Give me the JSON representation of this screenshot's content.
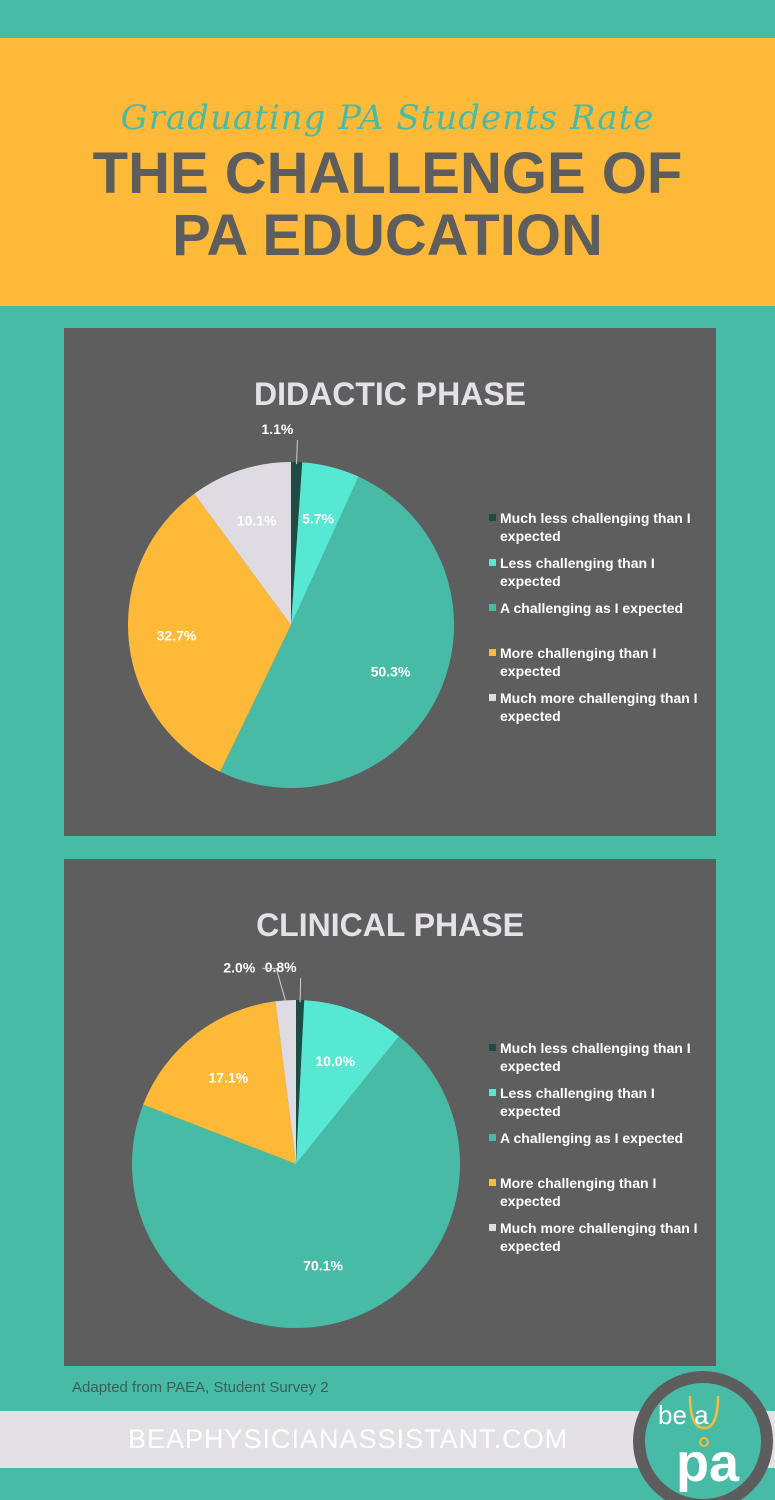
{
  "header": {
    "subtitle": "Graduating PA Students Rate",
    "title_line1": "THE CHALLENGE OF",
    "title_line2": "PA EDUCATION"
  },
  "colors": {
    "much_less": "#1f4b45",
    "less": "#56e8d2",
    "as_expected": "#48bba7",
    "more": "#fdb937",
    "much_more": "#dedbe2"
  },
  "legend": [
    "Much less challenging than I expected",
    "Less challenging than I expected",
    "A challenging as I expected",
    "More challenging than I expected",
    "Much more challenging than I expected"
  ],
  "chart_data": [
    {
      "type": "pie",
      "title": "DIDACTIC PHASE",
      "categories": [
        "Much less challenging than I expected",
        "Less challenging than I expected",
        "A challenging as I expected",
        "More challenging than I expected",
        "Much more challenging than I expected"
      ],
      "values": [
        1.1,
        5.7,
        50.3,
        32.7,
        10.1
      ],
      "labels": [
        "1.1%",
        "5.7%",
        "50.3%",
        "32.7%",
        "10.1%"
      ]
    },
    {
      "type": "pie",
      "title": "CLINICAL PHASE",
      "categories": [
        "Much less challenging than I expected",
        "Less challenging than I expected",
        "A challenging as I expected",
        "More challenging than I expected",
        "Much more challenging than I expected"
      ],
      "values": [
        0.8,
        10.0,
        70.1,
        17.1,
        2.0
      ],
      "labels": [
        "0.8%",
        "10.0%",
        "70.1%",
        "17.1%",
        "2.0%"
      ]
    }
  ],
  "source": "Adapted from PAEA, Student Survey 2",
  "footer": {
    "site": "BEAPHYSICIANASSISTANT.COM",
    "logo_top": "be a",
    "logo_bottom": "pa"
  }
}
